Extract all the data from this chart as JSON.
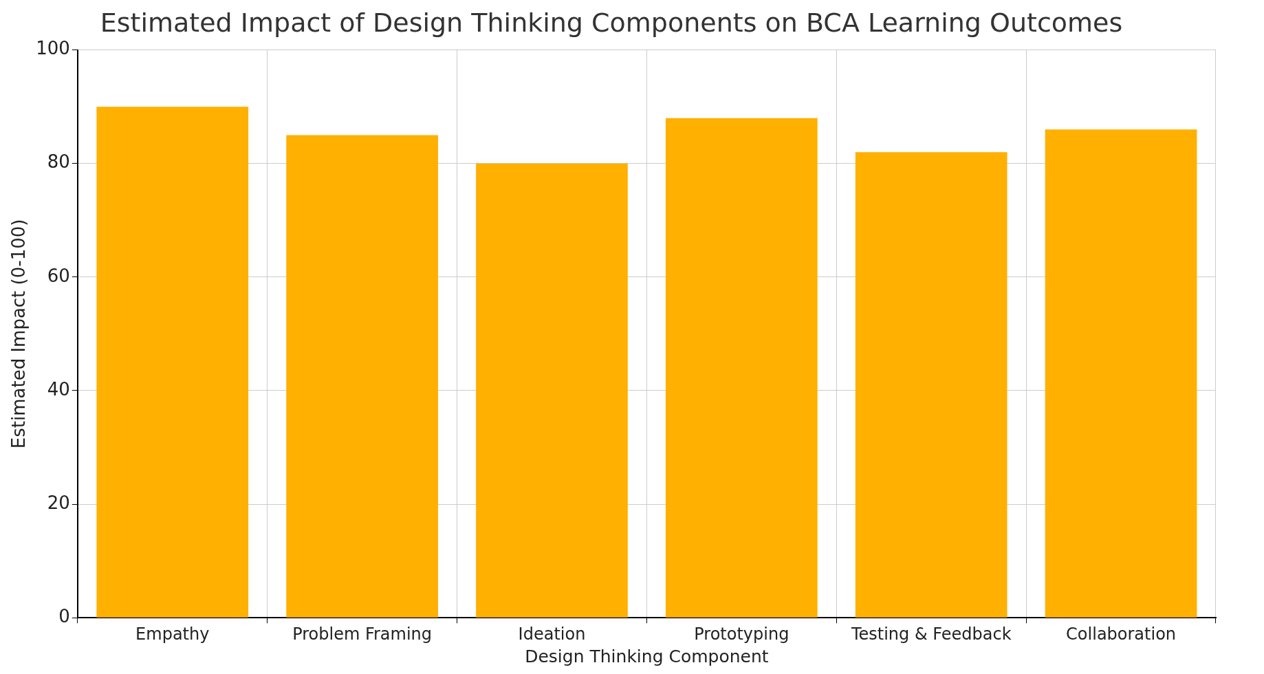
{
  "chart_data": {
    "type": "bar",
    "title": "Estimated Impact of Design Thinking Components on BCA Learning Outcomes",
    "xlabel": "Design Thinking Component",
    "ylabel": "Estimated Impact (0-100)",
    "categories": [
      "Empathy",
      "Problem Framing",
      "Ideation",
      "Prototyping",
      "Testing & Feedback",
      "Collaboration"
    ],
    "values": [
      90,
      85,
      80,
      88,
      82,
      86
    ],
    "color": "#ffb000",
    "ylim": [
      0,
      100
    ],
    "yticks": [
      0,
      20,
      40,
      60,
      80,
      100
    ],
    "grid": true
  }
}
